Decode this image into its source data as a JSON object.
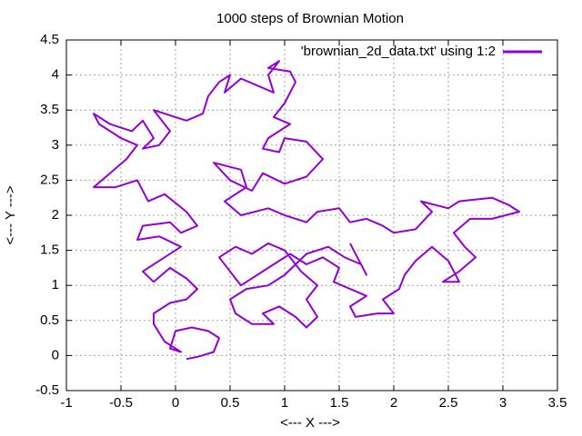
{
  "chart_data": {
    "type": "line",
    "title": "1000 steps of Brownian Motion",
    "xlabel": "<--- X --->",
    "ylabel": "<--- Y --->",
    "xlim": [
      -1,
      3.5
    ],
    "ylim": [
      -0.5,
      4.5
    ],
    "xticks": [
      -1,
      -0.5,
      0,
      0.5,
      1,
      1.5,
      2,
      2.5,
      3,
      3.5
    ],
    "yticks": [
      -0.5,
      0,
      0.5,
      1,
      1.5,
      2,
      2.5,
      3,
      3.5,
      4,
      4.5
    ],
    "grid": true,
    "legend": "top-right",
    "x": [
      0.1,
      0.2,
      0.35,
      0.4,
      0.3,
      0.15,
      0.0,
      -0.05,
      0.05,
      -0.1,
      -0.2,
      -0.2,
      -0.05,
      0.1,
      0.2,
      0.1,
      -0.05,
      -0.2,
      -0.3,
      -0.1,
      0.05,
      -0.15,
      -0.35,
      -0.3,
      -0.05,
      0.05,
      0.2,
      0.1,
      -0.1,
      -0.25,
      -0.35,
      -0.55,
      -0.75,
      -0.6,
      -0.45,
      -0.35,
      -0.5,
      -0.7,
      -0.75,
      -0.6,
      -0.4,
      -0.3,
      -0.2,
      -0.3,
      -0.15,
      -0.05,
      -0.2,
      -0.1,
      0.1,
      0.25,
      0.3,
      0.4,
      0.5,
      0.45,
      0.6,
      0.75,
      0.9,
      0.85,
      0.95,
      0.85,
      1.05,
      1.1,
      1.0,
      0.9,
      1.05,
      0.85,
      0.8,
      0.95,
      1.0,
      1.2,
      1.35,
      1.2,
      1.0,
      0.8,
      0.7,
      0.5,
      0.35,
      0.6,
      0.65,
      0.45,
      0.6,
      0.85,
      1.0,
      1.2,
      1.3,
      1.5,
      1.6,
      1.75,
      1.9,
      2.0,
      2.2,
      2.35,
      2.25,
      2.5,
      2.6,
      2.9,
      3.05,
      3.15,
      2.9,
      2.7,
      2.55,
      2.65,
      2.75,
      2.6,
      2.45,
      2.6,
      2.5,
      2.35,
      2.2,
      2.1,
      2.05,
      1.9,
      2.0,
      1.85,
      1.65,
      1.6,
      1.75,
      1.6,
      1.45,
      1.5,
      1.35,
      1.2,
      1.05,
      0.9,
      0.75,
      0.6,
      0.5,
      0.4,
      0.55,
      0.7,
      0.85,
      1.0,
      1.15,
      1.3,
      1.2,
      1.3,
      1.2,
      1.1,
      0.95,
      0.8,
      0.9,
      0.7,
      0.55,
      0.5,
      0.65,
      0.85,
      1.0,
      1.2,
      1.4,
      1.55,
      1.7,
      1.75,
      1.6
    ],
    "series": [
      {
        "name": "'brownian_2d_data.txt' using 1:2",
        "color": "#9400d3",
        "values": [
          -0.05,
          -0.02,
          0.05,
          0.25,
          0.35,
          0.4,
          0.35,
          0.1,
          0.05,
          0.2,
          0.45,
          0.6,
          0.75,
          0.8,
          0.95,
          1.1,
          1.25,
          1.05,
          1.2,
          1.4,
          1.55,
          1.7,
          1.65,
          1.85,
          1.9,
          1.75,
          1.85,
          2.05,
          2.3,
          2.2,
          2.5,
          2.4,
          2.4,
          2.6,
          2.8,
          3.0,
          3.1,
          3.3,
          3.45,
          3.3,
          3.2,
          3.35,
          3.1,
          2.95,
          3.0,
          3.2,
          3.5,
          3.45,
          3.35,
          3.45,
          3.7,
          3.9,
          4.0,
          3.75,
          3.95,
          3.85,
          3.75,
          4.0,
          4.2,
          4.1,
          4.05,
          3.9,
          3.6,
          3.4,
          3.3,
          3.1,
          2.95,
          2.9,
          3.1,
          3.05,
          2.8,
          2.55,
          2.45,
          2.6,
          2.35,
          2.5,
          2.75,
          2.65,
          2.4,
          2.2,
          2.0,
          2.1,
          2.0,
          1.9,
          2.05,
          2.1,
          1.9,
          1.95,
          1.85,
          1.75,
          1.8,
          2.05,
          2.2,
          2.1,
          2.2,
          2.25,
          2.15,
          2.05,
          1.95,
          1.95,
          1.75,
          1.55,
          1.4,
          1.2,
          1.05,
          1.05,
          1.35,
          1.55,
          1.35,
          1.15,
          0.95,
          0.8,
          0.6,
          0.6,
          0.55,
          0.7,
          0.85,
          0.95,
          1.05,
          1.25,
          1.4,
          1.3,
          1.45,
          1.3,
          1.15,
          1.0,
          1.2,
          1.4,
          1.55,
          1.45,
          1.6,
          1.5,
          1.2,
          1.0,
          0.8,
          0.55,
          0.4,
          0.55,
          0.7,
          0.6,
          0.45,
          0.45,
          0.6,
          0.8,
          0.95,
          1.0,
          1.15,
          1.45,
          1.55,
          1.4,
          1.3,
          1.15,
          1.6
        ]
      }
    ]
  }
}
